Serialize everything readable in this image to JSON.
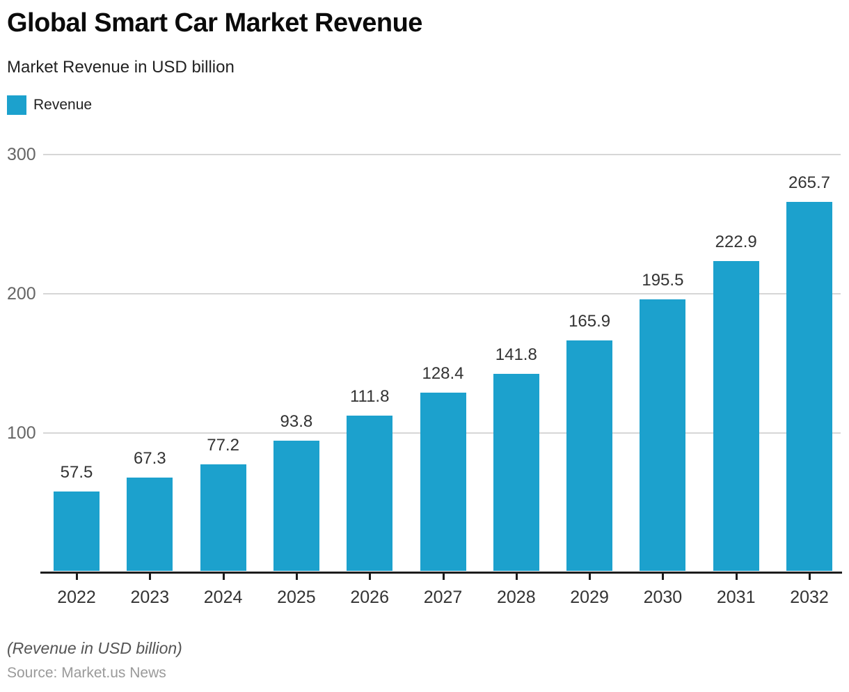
{
  "header": {
    "title": "Global Smart Car Market Revenue",
    "subtitle": "Market Revenue in USD billion",
    "legend": {
      "label": "Revenue",
      "swatch_color": "#1CA1CD"
    }
  },
  "chart_data": {
    "type": "bar",
    "title": "Global Smart Car Market Revenue",
    "categories": [
      "2022",
      "2023",
      "2024",
      "2025",
      "2026",
      "2027",
      "2028",
      "2029",
      "2030",
      "2031",
      "2032"
    ],
    "series": [
      {
        "name": "Revenue",
        "values": [
          57.5,
          67.3,
          77.2,
          93.8,
          111.8,
          128.4,
          141.8,
          165.9,
          195.5,
          222.9,
          265.7
        ]
      }
    ],
    "xlabel": "",
    "ylabel": "",
    "ylim": [
      0,
      300
    ],
    "yticks": [
      100,
      200,
      300
    ],
    "grid": true,
    "value_labels": true,
    "legend_position": "top-left",
    "bar_color": "#1CA1CD",
    "gridline_color": "#d6d6d6",
    "axis_color": "#1c1c1c"
  },
  "footer": {
    "note": "(Revenue in USD billion)",
    "source": "Source: Market.us News"
  }
}
